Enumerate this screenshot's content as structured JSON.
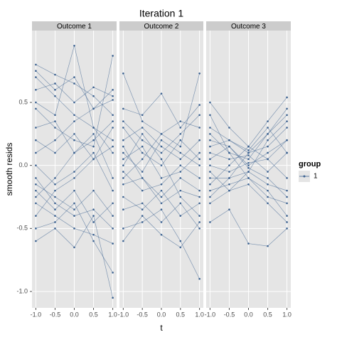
{
  "chart_data": {
    "type": "line",
    "title": "Iteration 1",
    "x_label": "t",
    "y_label": "smooth resids",
    "x": [
      -1,
      -0.5,
      0,
      0.5,
      1
    ],
    "xlim": [
      -1.1,
      1.1
    ],
    "xticks": [
      {
        "value": -1,
        "label": "-1.0"
      },
      {
        "value": -0.5,
        "label": "-0.5"
      },
      {
        "value": 0,
        "label": "0.0"
      },
      {
        "value": 0.5,
        "label": "0.5"
      },
      {
        "value": 1,
        "label": "1.0"
      }
    ],
    "ylim": [
      -1.13,
      1.07
    ],
    "yticks": [
      {
        "value": -1,
        "label": "-1.0"
      },
      {
        "value": -0.5,
        "label": "-0.5"
      },
      {
        "value": 0,
        "label": "0.0"
      },
      {
        "value": 0.5,
        "label": "0.5"
      }
    ],
    "grid": true,
    "legend_title": "group",
    "series": [
      {
        "name": "1",
        "color": "#3c6291"
      }
    ],
    "facets": [
      {
        "strip": "Outcome 1",
        "lines": [
          [
            0.8,
            0.72,
            0.65,
            0.55,
            0.4
          ],
          [
            0.75,
            0.6,
            0.7,
            0.45,
            0.6
          ],
          [
            0.7,
            0.55,
            0.4,
            0.3,
            0.2
          ],
          [
            0.6,
            0.65,
            0.5,
            0.62,
            0.55
          ],
          [
            0.5,
            0.4,
            0.95,
            0.3,
            0.1
          ],
          [
            0.45,
            0.3,
            0.2,
            0.15,
            0.87
          ],
          [
            0.3,
            0.35,
            0.1,
            0.25,
            -0.1
          ],
          [
            0.2,
            0.1,
            0.25,
            0.05,
            0.3
          ],
          [
            0.0,
            -0.15,
            -0.05,
            0.1,
            -0.2
          ],
          [
            -0.1,
            -0.3,
            -0.4,
            -0.35,
            -0.5
          ],
          [
            -0.2,
            -0.35,
            -0.2,
            -0.45,
            -0.3
          ],
          [
            -0.3,
            -0.4,
            -0.5,
            -0.55,
            -0.62
          ],
          [
            -0.4,
            -0.2,
            -0.1,
            0.05,
            0.15
          ],
          [
            -0.5,
            -0.45,
            -0.3,
            -0.6,
            -0.85
          ],
          [
            -0.6,
            -0.5,
            -0.65,
            -0.4,
            -1.05
          ],
          [
            -0.15,
            -0.25,
            -0.35,
            -0.2,
            -0.4
          ],
          [
            0.1,
            0.2,
            0.35,
            0.45,
            0.52
          ],
          [
            -0.25,
            -0.1,
            0.1,
            0.2,
            0.35
          ]
        ]
      },
      {
        "strip": "Outcome 2",
        "lines": [
          [
            0.73,
            0.35,
            0.25,
            0.15,
            0.73
          ],
          [
            0.45,
            0.4,
            0.57,
            0.3,
            0.48
          ],
          [
            0.35,
            0.2,
            0.1,
            0.25,
            0.4
          ],
          [
            0.2,
            0.3,
            0.15,
            0.05,
            0.2
          ],
          [
            0.1,
            -0.05,
            0.2,
            0.1,
            0.0
          ],
          [
            0.05,
            0.15,
            -0.1,
            -0.05,
            0.1
          ],
          [
            -0.05,
            -0.2,
            -0.15,
            0.0,
            -0.1
          ],
          [
            -0.15,
            -0.1,
            -0.3,
            -0.2,
            -0.25
          ],
          [
            -0.25,
            -0.35,
            -0.2,
            -0.4,
            -0.3
          ],
          [
            -0.35,
            -0.3,
            -0.45,
            -0.3,
            -0.5
          ],
          [
            -0.5,
            -0.45,
            -0.35,
            -0.6,
            -0.9
          ],
          [
            -0.6,
            -0.4,
            -0.55,
            -0.65,
            -0.45
          ],
          [
            0.3,
            0.1,
            0.0,
            0.2,
            0.05
          ],
          [
            -0.1,
            0.05,
            0.25,
            0.35,
            0.3
          ],
          [
            0.15,
            -0.1,
            -0.25,
            -0.1,
            -0.2
          ],
          [
            0.0,
            0.25,
            0.05,
            -0.25,
            -0.4
          ]
        ]
      },
      {
        "strip": "Outcome 3",
        "lines": [
          [
            0.5,
            0.3,
            0.15,
            0.35,
            0.54
          ],
          [
            0.4,
            0.1,
            0.05,
            0.25,
            0.45
          ],
          [
            0.3,
            0.2,
            0.1,
            0.15,
            0.3
          ],
          [
            0.2,
            0.15,
            0.0,
            0.1,
            0.2
          ],
          [
            0.1,
            0.05,
            0.08,
            -0.05,
            0.1
          ],
          [
            0.0,
            -0.05,
            0.02,
            0.05,
            -0.1
          ],
          [
            -0.1,
            -0.1,
            -0.05,
            -0.15,
            -0.2
          ],
          [
            -0.2,
            -0.15,
            -0.1,
            -0.25,
            -0.3
          ],
          [
            -0.3,
            -0.2,
            -0.15,
            -0.3,
            -0.45
          ],
          [
            -0.45,
            -0.35,
            -0.62,
            -0.64,
            -0.5
          ],
          [
            0.25,
            0.1,
            -0.1,
            -0.2,
            -0.4
          ],
          [
            -0.25,
            -0.1,
            0.1,
            0.25,
            0.4
          ],
          [
            0.15,
            0.2,
            0.12,
            0.3,
            0.1
          ],
          [
            -0.05,
            -0.2,
            -0.05,
            0.2,
            0.35
          ],
          [
            0.05,
            0.15,
            -0.02,
            -0.1,
            -0.25
          ],
          [
            -0.15,
            0.0,
            0.15,
            0.05,
            0.2
          ]
        ]
      }
    ]
  }
}
